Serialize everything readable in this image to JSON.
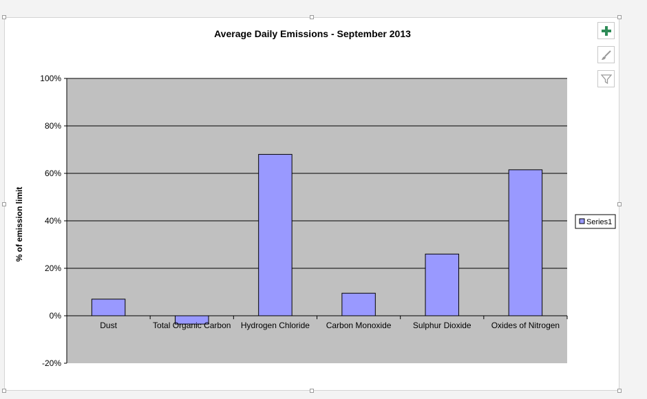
{
  "chart_data": {
    "type": "bar",
    "title": "Average Daily Emissions - September 2013",
    "ylabel": "% of emission limit",
    "xlabel": "",
    "categories": [
      "Dust",
      "Total Organic Carbon",
      "Hydrogen Chloride",
      "Carbon Monoxide",
      "Sulphur Dioxide",
      "Oxides of Nitrogen"
    ],
    "series": [
      {
        "name": "Series1",
        "values": [
          7,
          -3.5,
          68,
          9.5,
          26,
          61.5
        ]
      }
    ],
    "ylim": [
      -20,
      100
    ],
    "yticks": [
      -20,
      0,
      20,
      40,
      60,
      80,
      100
    ],
    "ytick_labels": [
      "-20%",
      "0%",
      "20%",
      "40%",
      "60%",
      "80%",
      "100%"
    ],
    "grid": true,
    "legend": "right",
    "colors": {
      "bar": "#9999ff",
      "plot_bg": "#c0c0c0"
    }
  },
  "toolbar": {
    "add_icon": "plus-icon",
    "style_icon": "brush-icon",
    "filter_icon": "filter-icon"
  }
}
